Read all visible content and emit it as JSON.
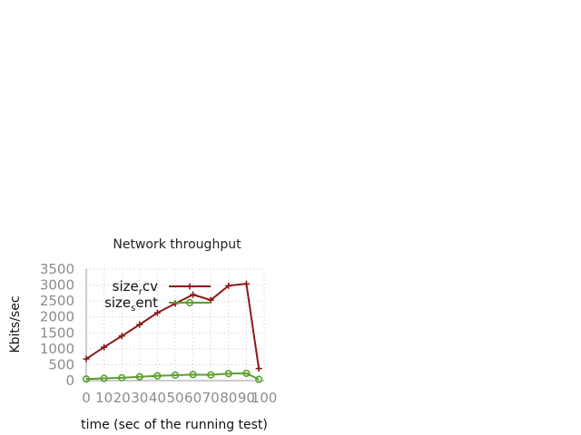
{
  "chart_data": {
    "type": "line",
    "title": "Network throughput",
    "xlabel": "time (sec of the running test)",
    "ylabel": "Kbits/sec",
    "xlim": [
      0,
      100
    ],
    "ylim": [
      0,
      3500
    ],
    "grid": true,
    "legend_position": "top-right",
    "x_ticks": [
      "0",
      "10",
      "20",
      "30",
      "40",
      "50",
      "60",
      "70",
      "80",
      "90",
      "100"
    ],
    "y_ticks": [
      "0",
      "500",
      "1000",
      "1500",
      "2000",
      "2500",
      "3000",
      "3500"
    ],
    "x": [
      0,
      10,
      20,
      30,
      40,
      50,
      60,
      70,
      80,
      90,
      97
    ],
    "series": [
      {
        "name": "size_rcv",
        "legend_main": "size",
        "legend_sub": "r",
        "legend_rest": "cv",
        "color": "#8b1a1a",
        "marker": "plus",
        "values": [
          680,
          1050,
          1400,
          1760,
          2130,
          2420,
          2700,
          2530,
          2980,
          3040,
          380
        ]
      },
      {
        "name": "size_sent",
        "legend_main": "size",
        "legend_sub": "s",
        "legend_rest": "ent",
        "color": "#5aa02c",
        "marker": "circle",
        "values": [
          50,
          70,
          90,
          120,
          150,
          170,
          190,
          180,
          220,
          230,
          40
        ]
      }
    ]
  }
}
